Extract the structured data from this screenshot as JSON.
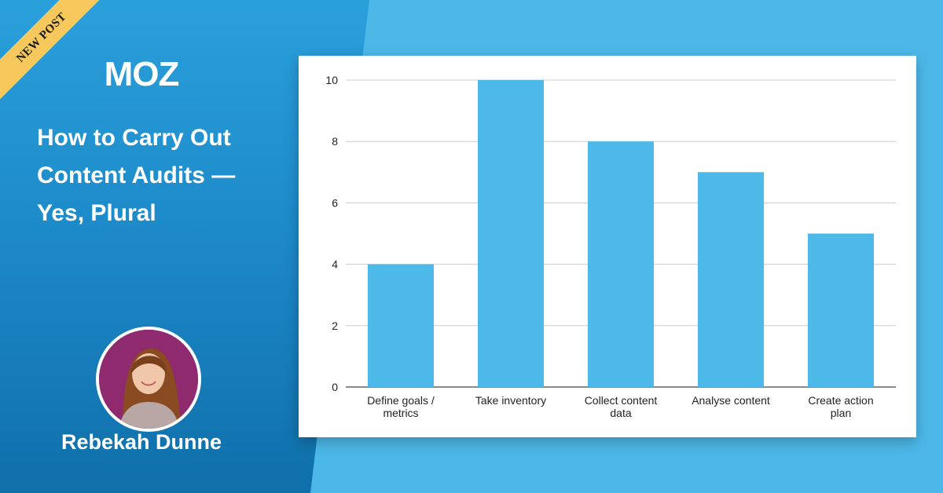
{
  "ribbon": {
    "label": "NEW POST",
    "color": "#f7c95c"
  },
  "brand": {
    "logo_text": "MOZ"
  },
  "headline": {
    "line1": "How to Carry Out",
    "line2": "Content Audits —",
    "line3": "Yes, Plural"
  },
  "author": {
    "name": "Rebekah Dunne"
  },
  "chart_data": {
    "type": "bar",
    "categories": [
      [
        "Define goals /",
        "metrics"
      ],
      [
        "Take inventory"
      ],
      [
        "Collect content",
        "data"
      ],
      [
        "Analyse content"
      ],
      [
        "Create action",
        "plan"
      ]
    ],
    "values": [
      4,
      10,
      8,
      7,
      5
    ],
    "yticks": [
      0,
      2,
      4,
      6,
      8,
      10
    ],
    "ylim": [
      0,
      10
    ],
    "bar_color": "#4db9e9",
    "grid": true,
    "title": "",
    "xlabel": "",
    "ylabel": ""
  }
}
